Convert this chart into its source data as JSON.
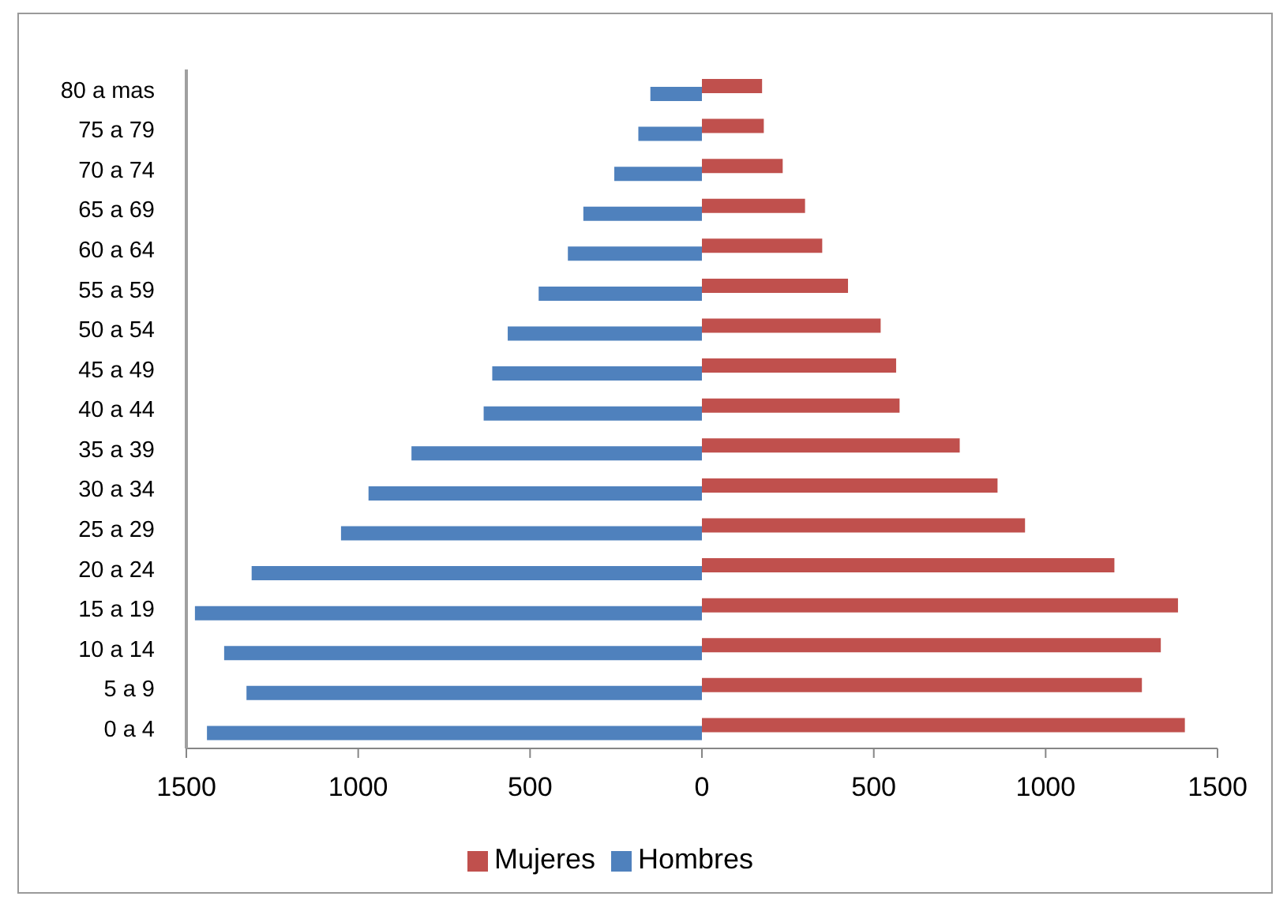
{
  "chart_data": {
    "type": "bar",
    "orientation": "horizontal",
    "categories": [
      "80 a mas",
      "75 a 79",
      "70 a 74",
      "65 a 69",
      "60 a 64",
      "55 a 59",
      "50 a 54",
      "45 a 49",
      "40 a 44",
      "35 a 39",
      "30 a 34",
      "25 a 29",
      "20 a 24",
      "15 a 19",
      "10 a 14",
      "5 a 9",
      "0 a 4"
    ],
    "series": [
      {
        "name": "Mujeres",
        "color": "#c0504d",
        "values": [
          175,
          180,
          235,
          300,
          350,
          425,
          520,
          565,
          575,
          750,
          860,
          940,
          1200,
          1385,
          1335,
          1280,
          1405
        ]
      },
      {
        "name": "Hombres",
        "color": "#4f81bd",
        "values": [
          -150,
          -185,
          -255,
          -345,
          -390,
          -475,
          -565,
          -610,
          -635,
          -845,
          -970,
          -1050,
          -1310,
          -1475,
          -1390,
          -1325,
          -1440
        ]
      }
    ],
    "xlim": [
      -1500,
      1500
    ],
    "xticks": [
      {
        "value": -1500,
        "label": "1500"
      },
      {
        "value": -1000,
        "label": "1000"
      },
      {
        "value": -500,
        "label": "500"
      },
      0,
      500,
      1000,
      1500
    ],
    "legend": "bottom"
  }
}
